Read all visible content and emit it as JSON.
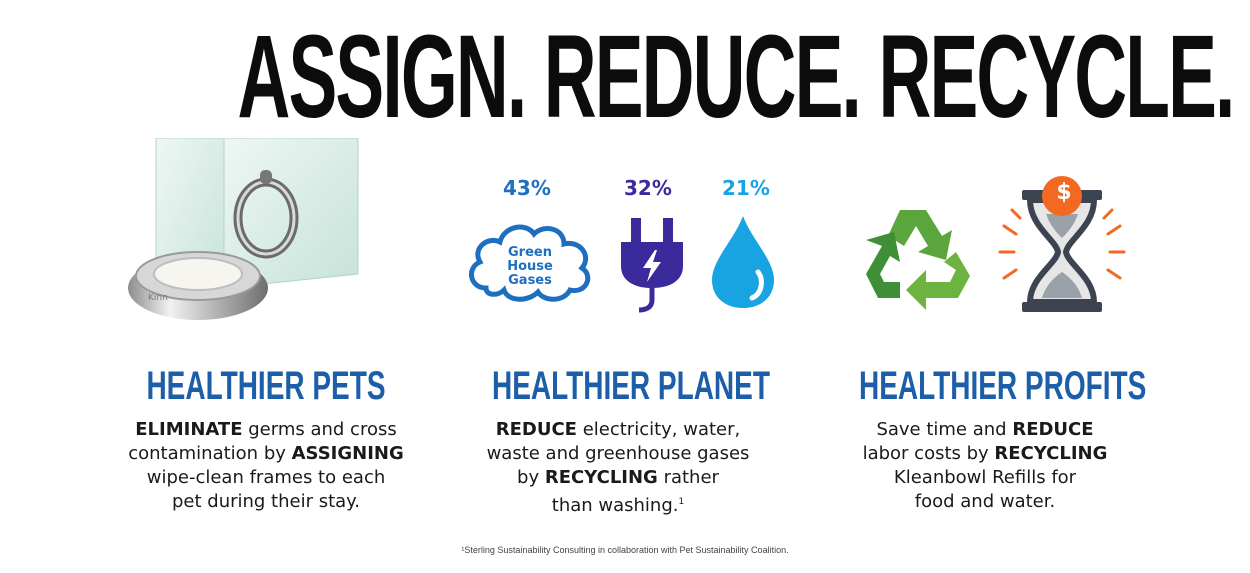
{
  "headline": "ASSIGN. REDUCE. RECYCLE.",
  "colors": {
    "heading_blue": "#1c5ea8",
    "cloud_blue": "#1f6fc1",
    "plug_purple": "#3a2a9c",
    "water_blue": "#18a3e3",
    "recycle_green": "#4a9a3a",
    "coin_orange": "#f26a21",
    "hourglass_gray": "#3b4450"
  },
  "columns": [
    {
      "heading": "HEALTHIER PETS",
      "icons": [
        "bowl-image",
        "glass-frame-image"
      ],
      "bowl_label": "Kinn",
      "text": {
        "l1_b": "ELIMINATE",
        "l1": " germs and cross",
        "l2": "contamination by ",
        "l2_b": "ASSIGNING",
        "l3": "wipe-clean frames to each",
        "l4": "pet during their stay."
      }
    },
    {
      "heading": "HEALTHIER PLANET",
      "stats": [
        {
          "value": "43%",
          "icon": "cloud-icon",
          "label_lines": [
            "Green",
            "House",
            "Gases"
          ]
        },
        {
          "value": "32%",
          "icon": "plug-icon"
        },
        {
          "value": "21%",
          "icon": "water-drop-icon"
        }
      ],
      "text": {
        "l1_b": "REDUCE",
        "l1": " electricity, water,",
        "l2": "waste and greenhouse gases",
        "l3": "by ",
        "l3_b": "RECYCLING",
        "l3_end": " rather",
        "l4": "than washing.",
        "l4_sup": "1"
      }
    },
    {
      "heading": "HEALTHIER PROFITS",
      "icons": [
        "recycle-icon",
        "hourglass-dollar-icon"
      ],
      "coin_symbol": "$",
      "text": {
        "l1": "Save time and ",
        "l1_b": "REDUCE",
        "l2": "labor costs by ",
        "l2_b": "RECYCLING",
        "l3": "Kleanbowl Refills for",
        "l4": "food and water."
      }
    }
  ],
  "footnote": "¹Sterling Sustainability Consulting in collaboration with Pet Sustainability Coalition."
}
